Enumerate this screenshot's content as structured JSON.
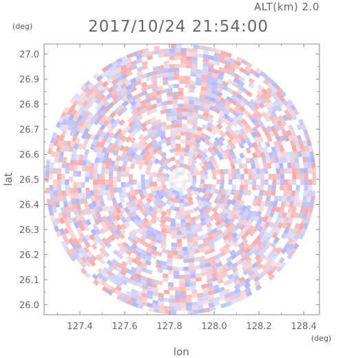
{
  "header": {
    "altitude_label": "ALT(km) 2.0",
    "timestamp": "2017/10/24 21:54:00"
  },
  "chart_data": {
    "type": "heatmap",
    "description_kind": "polar radar field, diverging red/blue, white center",
    "xlabel": "lon",
    "ylabel": "lat",
    "x_unit": "(deg)",
    "y_unit": "(deg)",
    "xlim": [
      127.24,
      128.47
    ],
    "ylim": [
      25.96,
      27.04
    ],
    "x_ticks": [
      "127.4",
      "127.6",
      "127.8",
      "128.0",
      "128.2",
      "128.4"
    ],
    "x_tick_values": [
      127.4,
      127.6,
      127.8,
      128.0,
      128.2,
      128.4
    ],
    "y_ticks": [
      "26.0",
      "26.1",
      "26.2",
      "26.3",
      "26.4",
      "26.5",
      "26.6",
      "26.7",
      "26.8",
      "26.9",
      "27.0"
    ],
    "y_tick_values": [
      26.0,
      26.1,
      26.2,
      26.3,
      26.4,
      26.5,
      26.6,
      26.7,
      26.8,
      26.9,
      27.0
    ],
    "center": {
      "lon": 127.85,
      "lat": 26.5
    },
    "radius_deg_lat": 0.54,
    "colors": {
      "positive": "#f4a0a0",
      "negative": "#a9aef4",
      "neutral": "#ffffff",
      "axis": "#888888",
      "tick_text": "#666666"
    },
    "grid": false
  }
}
